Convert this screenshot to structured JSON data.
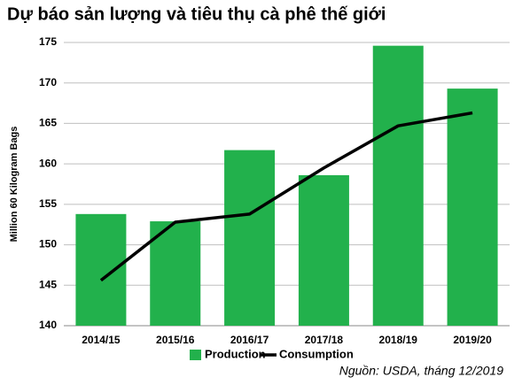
{
  "chart_data": {
    "type": "bar",
    "title": "Dự  báo sản lượng và tiêu thụ cà phê thế giới",
    "y_label": "Million 60 Kilogram Bags",
    "source": "Nguồn: USDA, tháng 12/2019",
    "categories": [
      "2014/15",
      "2015/16",
      "2016/17",
      "2017/18",
      "2018/19",
      "2019/20"
    ],
    "series": [
      {
        "name": "Production",
        "type": "bar",
        "color": "#22b14c",
        "values": [
          153.8,
          152.9,
          161.7,
          158.6,
          174.6,
          169.3
        ]
      },
      {
        "name": "Consumption",
        "type": "line",
        "color": "#000000",
        "values": [
          145.6,
          152.8,
          153.8,
          159.5,
          164.7,
          166.3
        ]
      }
    ],
    "ylim": [
      140,
      175
    ],
    "yticks": [
      140,
      145,
      150,
      155,
      160,
      165,
      170,
      175
    ],
    "grid": true,
    "legend": "bottom"
  }
}
